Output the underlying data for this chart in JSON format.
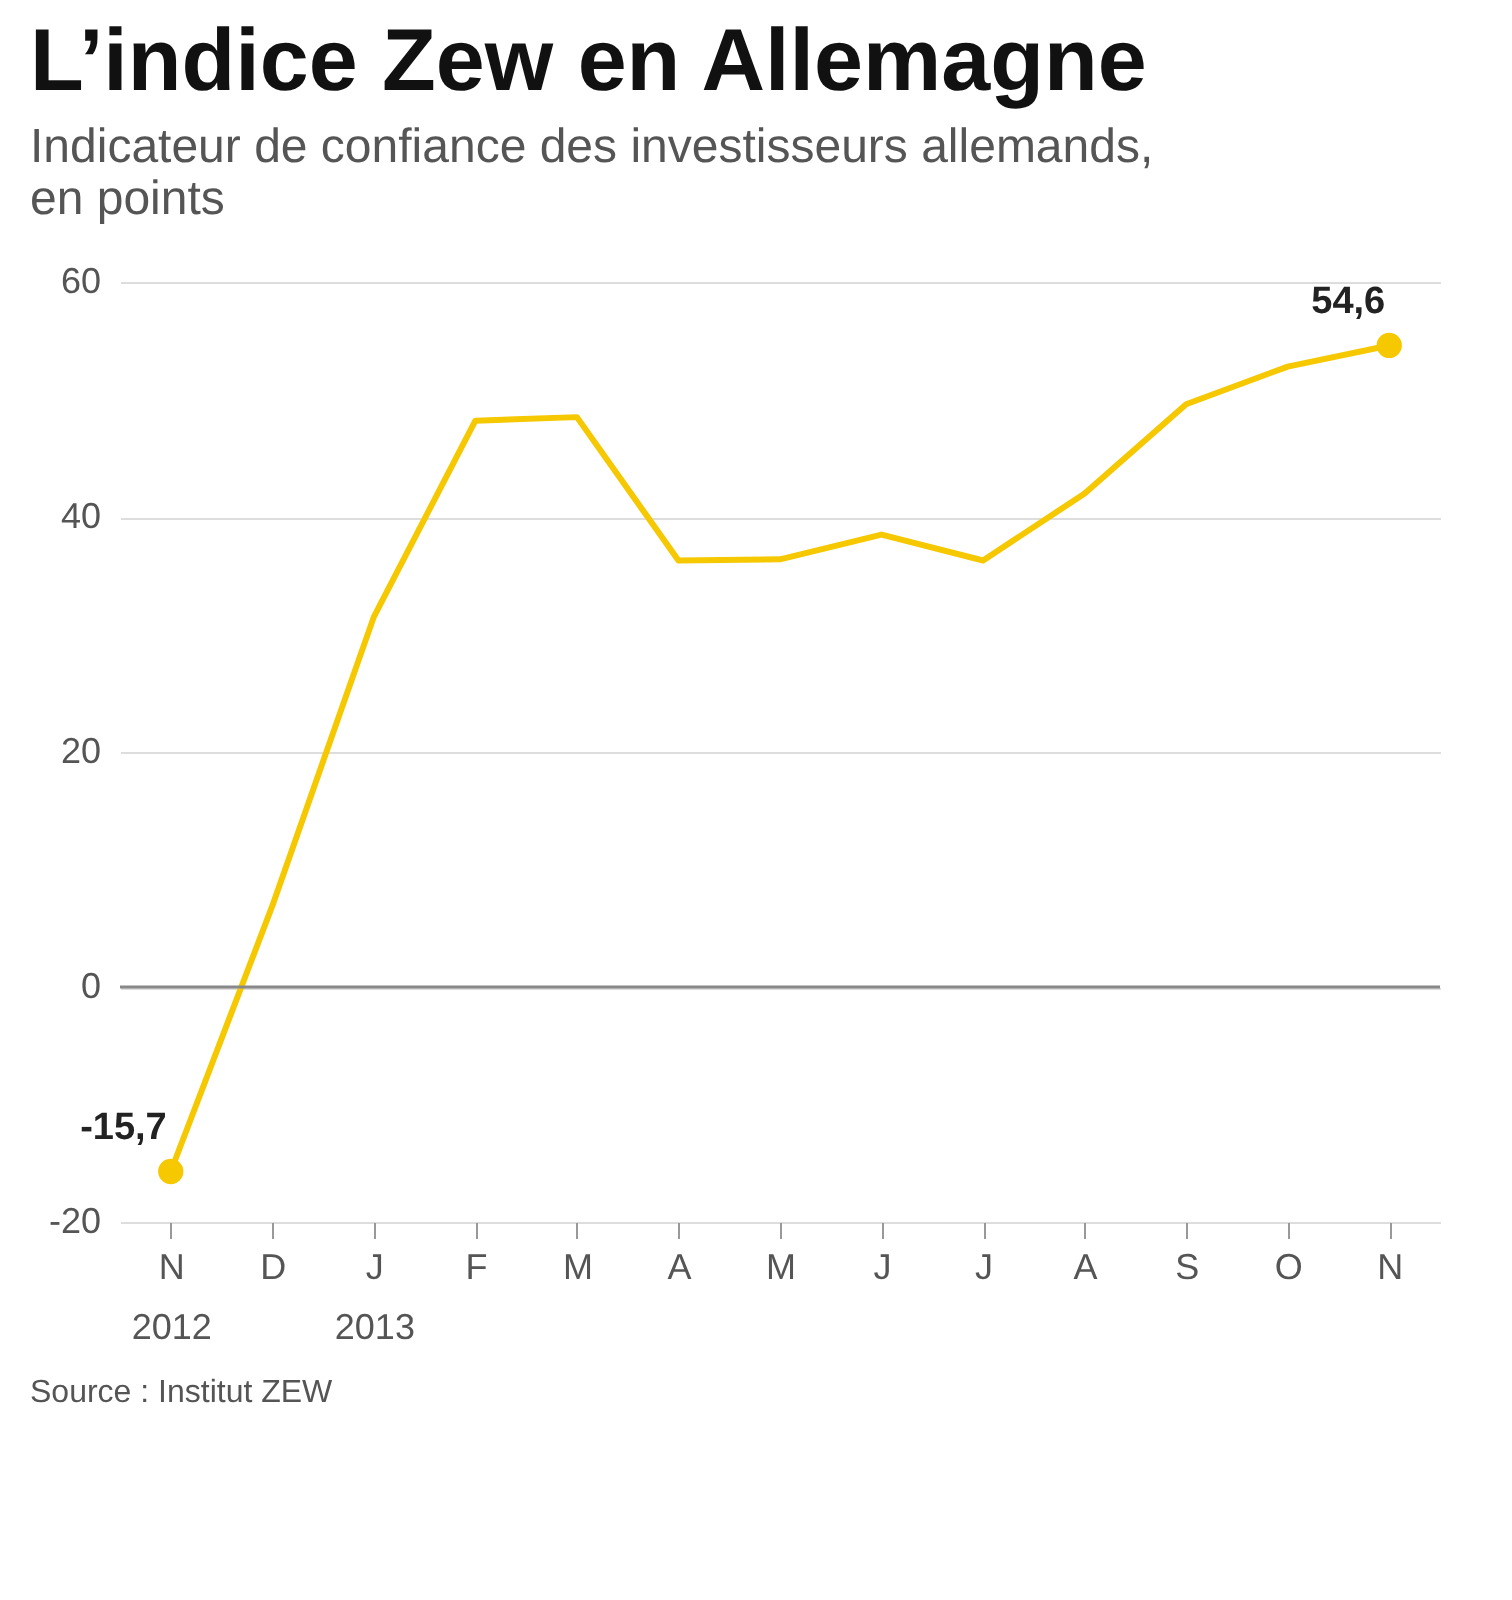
{
  "chart_data": {
    "type": "line",
    "title": "L’indice Zew en Allemagne",
    "subtitle": "Indicateur de confiance des investisseurs allemands,\nen points",
    "categories": [
      "N\n2012",
      "D",
      "J\n2013",
      "F",
      "M",
      "A",
      "M",
      "J",
      "J",
      "A",
      "S",
      "O",
      "N"
    ],
    "series": [
      {
        "color": "#f5c800",
        "values": [
          -15.7,
          6.9,
          31.5,
          48.2,
          48.5,
          36.3,
          36.4,
          38.5,
          36.3,
          42.0,
          49.6,
          52.8,
          54.6
        ],
        "value_labels": [
          "-15,7",
          null,
          null,
          null,
          null,
          null,
          null,
          null,
          null,
          null,
          null,
          null,
          "54,6"
        ]
      }
    ],
    "ylim": [
      -20,
      60
    ],
    "yticks": [
      -20,
      0,
      20,
      40,
      60
    ],
    "grid": "y",
    "ref_lines": [
      {
        "axis": "y",
        "value": 0,
        "color": "#888888"
      }
    ],
    "annotations": [
      "Source : Institut ZEW"
    ]
  }
}
